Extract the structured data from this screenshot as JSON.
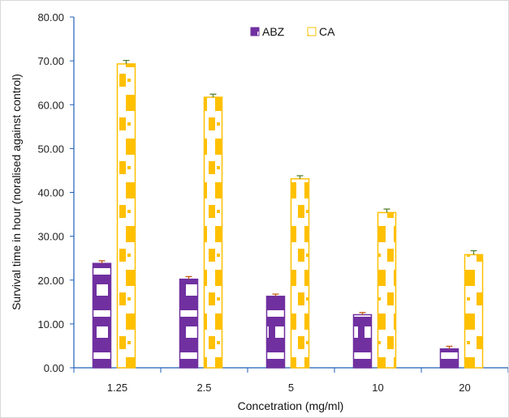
{
  "chart_data": {
    "type": "bar",
    "title": "",
    "xlabel": "Concetration (mg/ml)",
    "ylabel": "Survival time in hour (noralised against control)",
    "categories": [
      "1.25",
      "2.5",
      "5",
      "10",
      "20"
    ],
    "ylim": [
      0,
      80
    ],
    "yticks": [
      "0.00",
      "10.00",
      "20.00",
      "30.00",
      "40.00",
      "50.00",
      "60.00",
      "70.00",
      "80.00"
    ],
    "legend_position": "top-center",
    "grid": false,
    "series": [
      {
        "name": "ABZ",
        "color": "#7030a0",
        "error_color": "#c55a11",
        "values": [
          23.8,
          20.2,
          16.3,
          12.1,
          4.3
        ],
        "errors": [
          0.6,
          0.6,
          0.5,
          0.5,
          0.6
        ]
      },
      {
        "name": "CA",
        "color": "#ffc000",
        "error_color": "#548235",
        "values": [
          69.3,
          61.7,
          43.1,
          35.4,
          25.8
        ],
        "errors": [
          0.8,
          0.7,
          0.7,
          0.8,
          0.9
        ]
      }
    ]
  }
}
